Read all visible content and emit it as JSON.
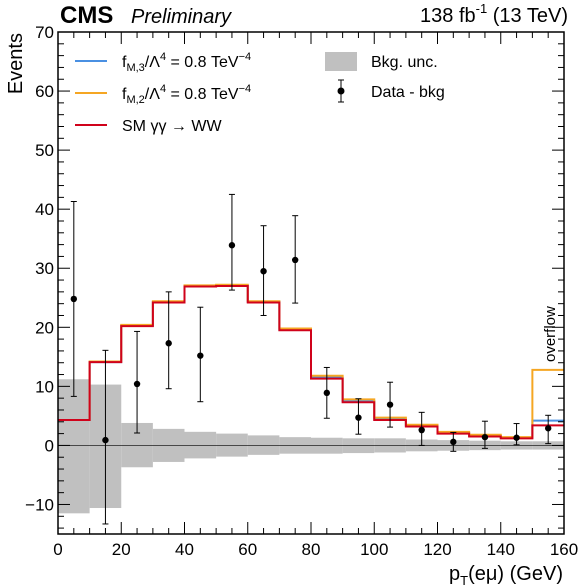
{
  "header": {
    "experiment": "CMS",
    "status": "Preliminary",
    "lumi_base": "138 fb",
    "lumi_exp": "-1",
    "lumi_energy": "(13 TeV)"
  },
  "chart_data": {
    "type": "histogram",
    "xlabel_main": "p",
    "xlabel_sub": "T",
    "xlabel_rest": "(eμ) (GeV)",
    "ylabel": "Events",
    "xlim": [
      0,
      160
    ],
    "ylim": [
      -15,
      70
    ],
    "x_ticks": [
      "0",
      "20",
      "40",
      "60",
      "80",
      "100",
      "120",
      "140",
      "160"
    ],
    "y_ticks": [
      "−10",
      "0",
      "10",
      "20",
      "30",
      "40",
      "50",
      "60",
      "70"
    ],
    "annotation": "overflow",
    "bin_edges": [
      0,
      10,
      20,
      30,
      40,
      50,
      60,
      70,
      80,
      90,
      100,
      110,
      120,
      130,
      140,
      150,
      160
    ],
    "bkg_unc": {
      "name": "Bkg. unc.",
      "color": "#c0c0c0",
      "low": [
        -11.5,
        -10.6,
        -3.7,
        -2.8,
        -2.2,
        -1.9,
        -1.6,
        -1.4,
        -1.4,
        -1.3,
        -1.2,
        -1.0,
        -0.9,
        -0.8,
        -0.7,
        -0.7
      ],
      "high": [
        11.2,
        10.3,
        3.8,
        2.8,
        2.3,
        2.0,
        1.7,
        1.4,
        1.3,
        1.2,
        1.2,
        1.0,
        0.9,
        0.8,
        0.7,
        0.7
      ]
    },
    "series": [
      {
        "name_base": "f",
        "name_sub": "M,3",
        "name_mid": "/Λ",
        "name_sup1": "4",
        "name_val": " = 0.8 TeV",
        "name_sup2": "−4",
        "color": "#4a90e2",
        "values": [
          4.3,
          14.1,
          20.3,
          24.3,
          27.0,
          27.1,
          24.3,
          19.6,
          11.5,
          7.5,
          4.4,
          3.3,
          2.1,
          1.6,
          1.3,
          4.2
        ]
      },
      {
        "name_base": "f",
        "name_sub": "M,2",
        "name_mid": "/Λ",
        "name_sup1": "4",
        "name_val": " = 0.8 TeV",
        "name_sup2": "−4",
        "color": "#f5a623",
        "values": [
          4.3,
          14.2,
          20.4,
          24.4,
          27.1,
          27.2,
          24.4,
          19.8,
          11.8,
          7.8,
          4.7,
          3.5,
          2.3,
          1.8,
          1.4,
          12.8
        ]
      },
      {
        "name": "SM γγ → WW",
        "color": "#d0021b",
        "values": [
          4.3,
          14.1,
          20.2,
          24.2,
          26.9,
          27.0,
          24.2,
          19.5,
          11.3,
          7.3,
          4.3,
          3.2,
          2.0,
          1.5,
          1.2,
          3.4
        ]
      }
    ],
    "data": {
      "name": "Data - bkg",
      "x": [
        5,
        15,
        25,
        35,
        45,
        55,
        65,
        75,
        85,
        95,
        105,
        115,
        125,
        135,
        145,
        155
      ],
      "y": [
        24.8,
        0.9,
        10.4,
        17.3,
        15.2,
        33.9,
        29.5,
        31.4,
        8.9,
        4.7,
        6.9,
        2.6,
        0.6,
        1.4,
        1.3,
        2.9
      ],
      "err_low": [
        16.5,
        14.2,
        8.3,
        7.7,
        7.8,
        7.6,
        7.5,
        7.3,
        4.3,
        2.8,
        3.8,
        2.6,
        1.6,
        1.9,
        1.2,
        2.6
      ],
      "err_high": [
        16.5,
        15.2,
        8.9,
        8.7,
        8.2,
        8.6,
        7.7,
        7.5,
        4.3,
        3.2,
        3.8,
        3.0,
        1.6,
        2.7,
        2.4,
        2.2
      ]
    }
  }
}
